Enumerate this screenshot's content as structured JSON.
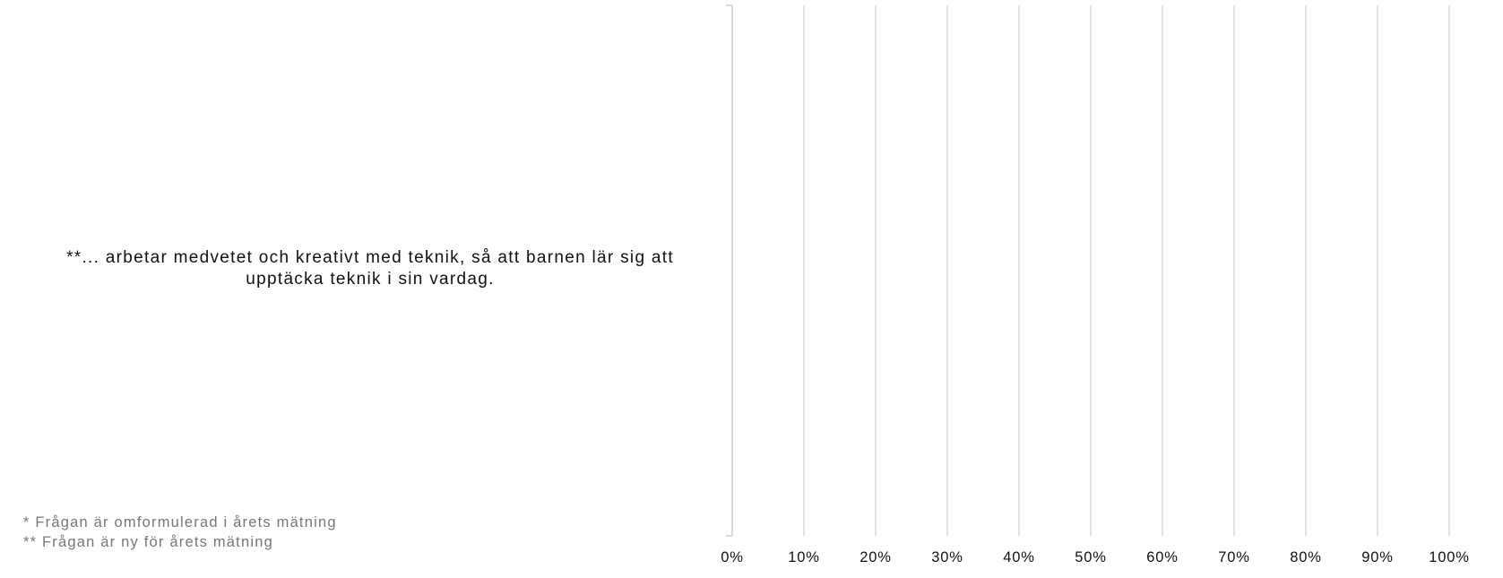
{
  "chart_data": {
    "type": "bar",
    "orientation": "horizontal",
    "categories": [
      "**... arbetar medvetet och kreativt med teknik, så att barnen lär sig att upptäcka teknik i sin vardag."
    ],
    "series": [],
    "x_ticks": [
      "0%",
      "10%",
      "20%",
      "30%",
      "40%",
      "50%",
      "60%",
      "70%",
      "80%",
      "90%",
      "100%"
    ],
    "xlim": [
      0,
      100
    ],
    "grid": true,
    "gridline_color": "#d9d9d9",
    "axis_color": "#d9d9d9",
    "legend": "none"
  },
  "footnotes": [
    "* Frågan är omformulerad i årets mätning",
    "** Frågan är ny för årets mätning"
  ]
}
